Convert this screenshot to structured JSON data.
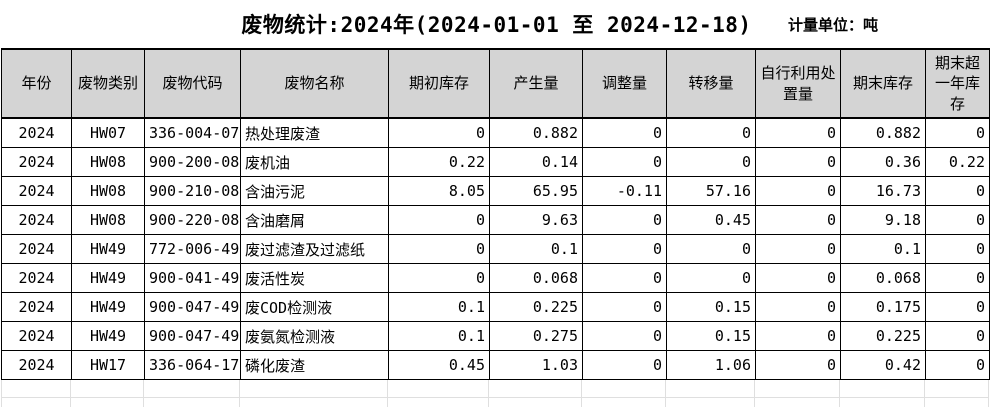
{
  "title": "废物统计:2024年(2024-01-01 至 2024-12-18)",
  "unit_label": "计量单位：吨",
  "colors": {
    "header_bg": "#d4d4d4",
    "table_border": "#000000",
    "ghost_gridline": "#dfdfdf",
    "text": "#000000",
    "page_bg": "#ffffff"
  },
  "table": {
    "columns": [
      {
        "key": "year",
        "label": "年份"
      },
      {
        "key": "waste-category",
        "label": "废物类别"
      },
      {
        "key": "waste-code",
        "label": "废物代码"
      },
      {
        "key": "waste-name",
        "label": "废物名称"
      },
      {
        "key": "opening-stock",
        "label": "期初库存"
      },
      {
        "key": "generated-amount",
        "label": "产生量"
      },
      {
        "key": "adjustment-amount",
        "label": "调整量"
      },
      {
        "key": "transferred-amount",
        "label": "转移量"
      },
      {
        "key": "self-utilized-disposed-amount",
        "label": "自行利用处置量"
      },
      {
        "key": "closing-stock",
        "label": "期末库存"
      },
      {
        "key": "closing-stock-over-one-year",
        "label": "期末超一年库存"
      }
    ],
    "rows": [
      [
        "2024",
        "HW07",
        "336-004-07",
        "热处理废渣",
        "0",
        "0.882",
        "0",
        "0",
        "0",
        "0.882",
        "0"
      ],
      [
        "2024",
        "HW08",
        "900-200-08",
        "废机油",
        "0.22",
        "0.14",
        "0",
        "0",
        "0",
        "0.36",
        "0.22"
      ],
      [
        "2024",
        "HW08",
        "900-210-08",
        "含油污泥",
        "8.05",
        "65.95",
        "-0.11",
        "57.16",
        "0",
        "16.73",
        "0"
      ],
      [
        "2024",
        "HW08",
        "900-220-08",
        "含油磨屑",
        "0",
        "9.63",
        "0",
        "0.45",
        "0",
        "9.18",
        "0"
      ],
      [
        "2024",
        "HW49",
        "772-006-49",
        "废过滤渣及过滤纸",
        "0",
        "0.1",
        "0",
        "0",
        "0",
        "0.1",
        "0"
      ],
      [
        "2024",
        "HW49",
        "900-041-49",
        "废活性炭",
        "0",
        "0.068",
        "0",
        "0",
        "0",
        "0.068",
        "0"
      ],
      [
        "2024",
        "HW49",
        "900-047-49",
        "废COD检测液",
        "0.1",
        "0.225",
        "0",
        "0.15",
        "0",
        "0.175",
        "0"
      ],
      [
        "2024",
        "HW49",
        "900-047-49",
        "废氨氮检测液",
        "0.1",
        "0.275",
        "0",
        "0.15",
        "0",
        "0.225",
        "0"
      ],
      [
        "2024",
        "HW17",
        "336-064-17",
        "磷化废渣",
        "0.45",
        "1.03",
        "0",
        "1.06",
        "0",
        "0.42",
        "0"
      ]
    ]
  }
}
